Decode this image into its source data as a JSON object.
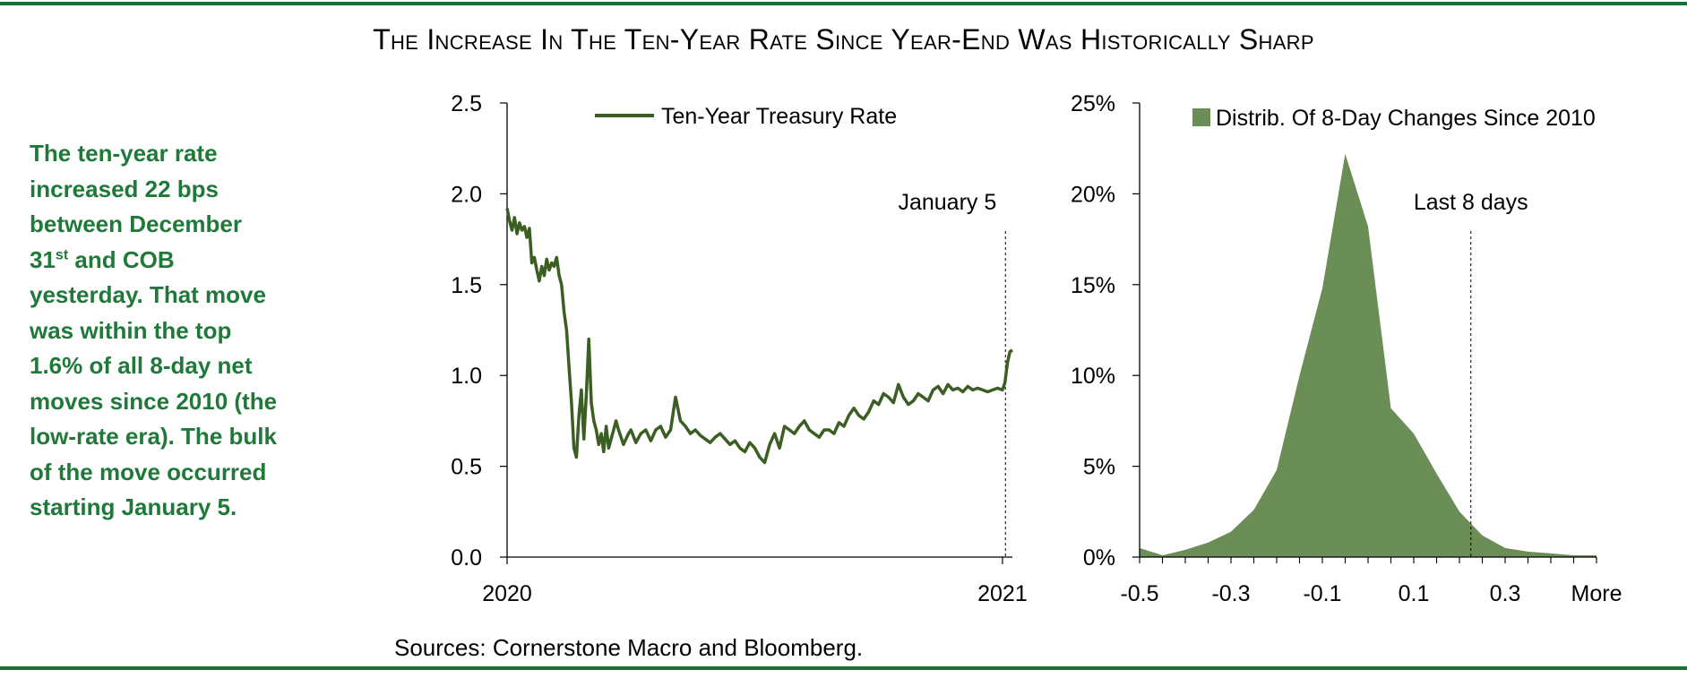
{
  "title": "The Increase In The Ten-Year Rate Since Year-End Was Historically Sharp",
  "note": {
    "part1": "The ten-year rate increased 22 bps between December 31",
    "sup": "st",
    "part2": " and COB yesterday.  That move was within the top 1.6% of all 8-day net moves since 2010 (the low-rate era).  The bulk of the move occurred starting January 5."
  },
  "sources": "Sources: Cornerstone Macro and Bloomberg.",
  "colors": {
    "rule": "#1f6b34",
    "note_text": "#1f7a3a",
    "line": "#3b5e22",
    "area": "#6b8e57"
  },
  "chart_data": [
    {
      "type": "line",
      "legend": "Ten-Year Treasury Rate",
      "legend_position": "top",
      "annotation": {
        "label": "January 5",
        "x": 1.006
      },
      "ylim": [
        0,
        2.5
      ],
      "yticks": [
        0.0,
        0.5,
        1.0,
        1.5,
        2.0,
        2.5
      ],
      "ytick_labels": [
        "0.0",
        "0.5",
        "1.0",
        "1.5",
        "2.0",
        "2.5"
      ],
      "xlim": [
        0,
        1.02
      ],
      "xticks": [
        0,
        1
      ],
      "xtick_labels": [
        "2020",
        "2021"
      ],
      "x": [
        0.0,
        0.005,
        0.01,
        0.015,
        0.02,
        0.025,
        0.03,
        0.035,
        0.04,
        0.045,
        0.05,
        0.055,
        0.06,
        0.065,
        0.07,
        0.075,
        0.08,
        0.085,
        0.09,
        0.095,
        0.1,
        0.105,
        0.11,
        0.115,
        0.12,
        0.125,
        0.13,
        0.135,
        0.14,
        0.145,
        0.15,
        0.155,
        0.16,
        0.165,
        0.17,
        0.175,
        0.18,
        0.185,
        0.19,
        0.195,
        0.2,
        0.205,
        0.21,
        0.215,
        0.22,
        0.225,
        0.23,
        0.235,
        0.24,
        0.245,
        0.25,
        0.26,
        0.27,
        0.28,
        0.29,
        0.3,
        0.31,
        0.32,
        0.33,
        0.34,
        0.35,
        0.36,
        0.37,
        0.38,
        0.39,
        0.4,
        0.41,
        0.42,
        0.43,
        0.44,
        0.45,
        0.46,
        0.47,
        0.48,
        0.49,
        0.5,
        0.51,
        0.52,
        0.53,
        0.54,
        0.55,
        0.56,
        0.57,
        0.58,
        0.59,
        0.6,
        0.61,
        0.62,
        0.63,
        0.64,
        0.65,
        0.66,
        0.67,
        0.68,
        0.69,
        0.7,
        0.71,
        0.72,
        0.73,
        0.74,
        0.75,
        0.76,
        0.77,
        0.78,
        0.79,
        0.8,
        0.81,
        0.82,
        0.83,
        0.84,
        0.85,
        0.86,
        0.87,
        0.88,
        0.89,
        0.9,
        0.91,
        0.92,
        0.93,
        0.94,
        0.95,
        0.96,
        0.97,
        0.98,
        0.99,
        1.0,
        1.005,
        1.01,
        1.015,
        1.02
      ],
      "y": [
        1.92,
        1.85,
        1.8,
        1.87,
        1.78,
        1.84,
        1.8,
        1.82,
        1.76,
        1.81,
        1.62,
        1.65,
        1.58,
        1.52,
        1.6,
        1.55,
        1.64,
        1.58,
        1.62,
        1.6,
        1.65,
        1.55,
        1.5,
        1.35,
        1.25,
        1.05,
        0.85,
        0.6,
        0.55,
        0.78,
        0.92,
        0.65,
        0.9,
        1.2,
        0.85,
        0.75,
        0.7,
        0.62,
        0.68,
        0.58,
        0.72,
        0.6,
        0.65,
        0.7,
        0.75,
        0.7,
        0.66,
        0.62,
        0.65,
        0.68,
        0.7,
        0.63,
        0.68,
        0.7,
        0.64,
        0.7,
        0.72,
        0.66,
        0.7,
        0.88,
        0.75,
        0.72,
        0.68,
        0.7,
        0.67,
        0.65,
        0.63,
        0.66,
        0.68,
        0.65,
        0.62,
        0.64,
        0.6,
        0.58,
        0.63,
        0.6,
        0.55,
        0.52,
        0.62,
        0.68,
        0.6,
        0.72,
        0.7,
        0.68,
        0.72,
        0.75,
        0.7,
        0.68,
        0.66,
        0.7,
        0.7,
        0.68,
        0.74,
        0.72,
        0.78,
        0.82,
        0.78,
        0.76,
        0.8,
        0.86,
        0.84,
        0.9,
        0.88,
        0.85,
        0.95,
        0.88,
        0.84,
        0.86,
        0.9,
        0.88,
        0.86,
        0.92,
        0.94,
        0.9,
        0.95,
        0.92,
        0.93,
        0.91,
        0.94,
        0.92,
        0.93,
        0.92,
        0.91,
        0.92,
        0.93,
        0.92,
        0.96,
        1.07,
        1.13,
        1.14
      ]
    },
    {
      "type": "area",
      "legend": "Distrib. Of 8-Day Changes Since 2010",
      "legend_position": "top",
      "annotation": {
        "label": "Last 8 days",
        "category": 0.225
      },
      "ylim": [
        0,
        0.25
      ],
      "yticks": [
        0,
        0.05,
        0.1,
        0.15,
        0.2,
        0.25
      ],
      "ytick_labels": [
        "0%",
        "5%",
        "10%",
        "15%",
        "20%",
        "25%"
      ],
      "categories": [
        "-0.5",
        "-0.45",
        "-0.4",
        "-0.35",
        "-0.3",
        "-0.25",
        "-0.2",
        "-0.15",
        "-0.1",
        "-0.05",
        "0",
        "0.05",
        "0.1",
        "0.15",
        "0.2",
        "0.25",
        "0.3",
        "0.35",
        "0.4",
        "0.45",
        "More"
      ],
      "tick_labels": [
        "-0.5",
        "-0.3",
        "-0.1",
        "0.1",
        "0.3",
        "More"
      ],
      "tick_category_index": [
        0,
        4,
        8,
        12,
        16,
        20
      ],
      "values": [
        0.005,
        0.001,
        0.004,
        0.008,
        0.014,
        0.026,
        0.048,
        0.1,
        0.148,
        0.222,
        0.182,
        0.082,
        0.068,
        0.046,
        0.025,
        0.012,
        0.005,
        0.003,
        0.002,
        0.001,
        0.001
      ]
    }
  ]
}
